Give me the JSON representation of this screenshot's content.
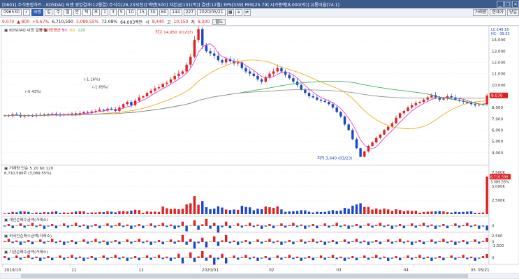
{
  "window": {
    "title": "[0601] 주식종합차트 - KOSDAQ 씨젠 영업결과(12월결) 주식수[26,233(천)] 액면[500] 자본금[131(억)] 결산(12월) EPS[339] PER[25.79] 시가총액[8,000(억)] 유통비율[74.1]",
    "buttons": [
      "_",
      "□",
      "×"
    ]
  },
  "toolbar": {
    "code_prefix": "096530",
    "search_icon": "search-icon",
    "stock_name": "씨젠",
    "period_buttons": [
      "일",
      "주",
      "월",
      "분",
      "틱",
      "초"
    ],
    "interval_buttons": [
      "1",
      "3",
      "5",
      "10",
      "15",
      "30",
      "60"
    ],
    "count": "144",
    "total": "227",
    "date": "2020/05/21",
    "extra": [
      "▦",
      "≡",
      "⇄"
    ],
    "right_buttons": [
      "거래량",
      "현재가",
      "당일"
    ]
  },
  "quote": {
    "price": "9,070",
    "change": "▲ 800",
    "change_pct": "+9.67%",
    "volume": "6,710,590",
    "vol_ratio": "3,089.55%",
    "turnover": "72.08%",
    "amount": "64,003백만",
    "open_label": "시",
    "open": "8,440",
    "high_label": "고",
    "high": "10,150",
    "low_label": "저",
    "low": "8,300",
    "btn": "월도"
  },
  "chart_data": [
    {
      "type": "candlestick",
      "title": "KOSDAQ 씨젠 일봉",
      "legend": [
        "가격이동평균 5",
        "20",
        "60",
        "120"
      ],
      "ylim": [
        3000,
        15000
      ],
      "y_ticks": [
        4000,
        5000,
        6000,
        7000,
        8000,
        9000,
        10000,
        11000,
        12000,
        13000,
        14000
      ],
      "x_ticks": [
        "2019/10",
        "11",
        "12",
        "2020/01",
        "02",
        "03",
        "04",
        "05",
        "05/21"
      ],
      "annotations": [
        "최고 14,950 (01/07)",
        "최저 3,640 (03/23)",
        "(-0.43%)",
        "(-1.16%)",
        "(-1.69%)",
        "9.070"
      ],
      "right_labels": [
        "LC:149.18",
        "HC: -39.33"
      ],
      "closes": [
        7300,
        7250,
        7400,
        7350,
        7200,
        7300,
        7280,
        7260,
        7350,
        7320,
        7400,
        7380,
        7450,
        7350,
        7300,
        7400,
        7420,
        7480,
        7350,
        7500,
        7600,
        7550,
        7650,
        7700,
        7800,
        7750,
        7900,
        7850,
        7700,
        8000,
        8300,
        8500,
        8200,
        8600,
        8900,
        9000,
        9300,
        9500,
        9700,
        9800,
        10100,
        10200,
        10500,
        10800,
        11000,
        11200,
        11800,
        12500,
        14000,
        14950,
        13500,
        13000,
        12800,
        12600,
        12200,
        12000,
        12300,
        12100,
        11900,
        12000,
        11500,
        11200,
        11000,
        10800,
        10500,
        10300,
        10700,
        11000,
        11200,
        11500,
        11200,
        10900,
        10600,
        10300,
        10000,
        9600,
        9300,
        9000,
        8900,
        8700,
        8600,
        8500,
        8300,
        8000,
        7600,
        7200,
        6500,
        6000,
        5200,
        4400,
        3640,
        4100,
        4600,
        4900,
        5300,
        5600,
        6000,
        6300,
        6600,
        7100,
        7500,
        7700,
        8000,
        8200,
        8400,
        8500,
        8700,
        8900,
        9100,
        8900,
        8700,
        8800,
        9000,
        8900,
        8700,
        8600,
        8500,
        8400,
        8300,
        8200,
        8250,
        8300,
        9070
      ],
      "ma_periods": [
        5,
        20,
        60,
        120
      ]
    },
    {
      "type": "bar",
      "title": "거래량",
      "legend": [
        "거래량",
        "단순",
        "5",
        "20",
        "60",
        "120"
      ],
      "value_label": "6,710,590주 (3,089.55%)",
      "y_ticks": [
        "2,500K",
        "5,000K",
        "7,500K"
      ],
      "right_labels": [
        "6,710,590",
        "3,089.55%"
      ]
    },
    {
      "type": "bar",
      "title": "개인순매수금액(거래소)",
      "y_ticks": [
        "0"
      ]
    },
    {
      "type": "bar",
      "title": "외국인순매수금액(거래소)",
      "y_ticks": [
        "2,500",
        "0",
        "-2,500"
      ]
    },
    {
      "type": "bar",
      "title": "기관순매수금액(거래소)",
      "y_ticks": [
        "0"
      ]
    }
  ]
}
